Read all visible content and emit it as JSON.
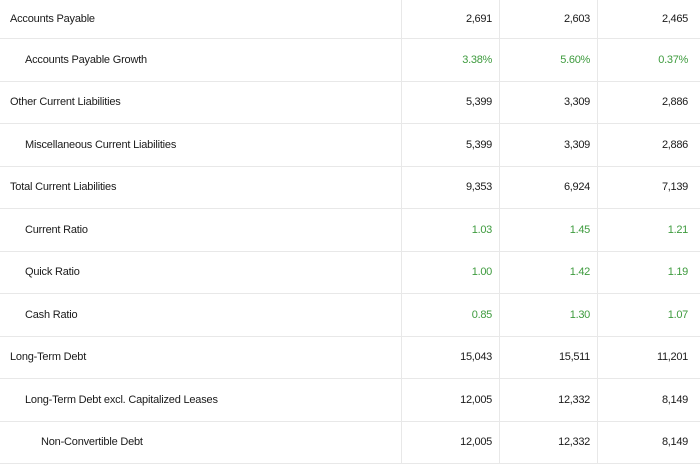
{
  "colors": {
    "positive": "#3e9b3e",
    "text": "#1a1a1a",
    "border": "#e8e8e8"
  },
  "rows": [
    {
      "label": "Accounts Payable",
      "level": 0,
      "style": "normal",
      "values": [
        "2,691",
        "2,603",
        "2,465"
      ]
    },
    {
      "label": "Accounts Payable Growth",
      "level": 1,
      "style": "green",
      "values": [
        "3.38%",
        "5.60%",
        "0.37%"
      ]
    },
    {
      "label": "Other Current Liabilities",
      "level": 0,
      "style": "normal",
      "values": [
        "5,399",
        "3,309",
        "2,886"
      ]
    },
    {
      "label": "Miscellaneous Current Liabilities",
      "level": 1,
      "style": "normal",
      "values": [
        "5,399",
        "3,309",
        "2,886"
      ]
    },
    {
      "label": "Total Current Liabilities",
      "level": 0,
      "style": "normal",
      "values": [
        "9,353",
        "6,924",
        "7,139"
      ]
    },
    {
      "label": "Current Ratio",
      "level": 1,
      "style": "green",
      "values": [
        "1.03",
        "1.45",
        "1.21"
      ]
    },
    {
      "label": "Quick Ratio",
      "level": 1,
      "style": "green",
      "values": [
        "1.00",
        "1.42",
        "1.19"
      ]
    },
    {
      "label": "Cash Ratio",
      "level": 1,
      "style": "green",
      "values": [
        "0.85",
        "1.30",
        "1.07"
      ]
    },
    {
      "label": "Long-Term Debt",
      "level": 0,
      "style": "normal",
      "values": [
        "15,043",
        "15,511",
        "11,201"
      ]
    },
    {
      "label": "Long-Term Debt excl. Capitalized Leases",
      "level": 1,
      "style": "normal",
      "values": [
        "12,005",
        "12,332",
        "8,149"
      ]
    },
    {
      "label": "Non-Convertible Debt",
      "level": 2,
      "style": "normal",
      "values": [
        "12,005",
        "12,332",
        "8,149"
      ]
    }
  ]
}
